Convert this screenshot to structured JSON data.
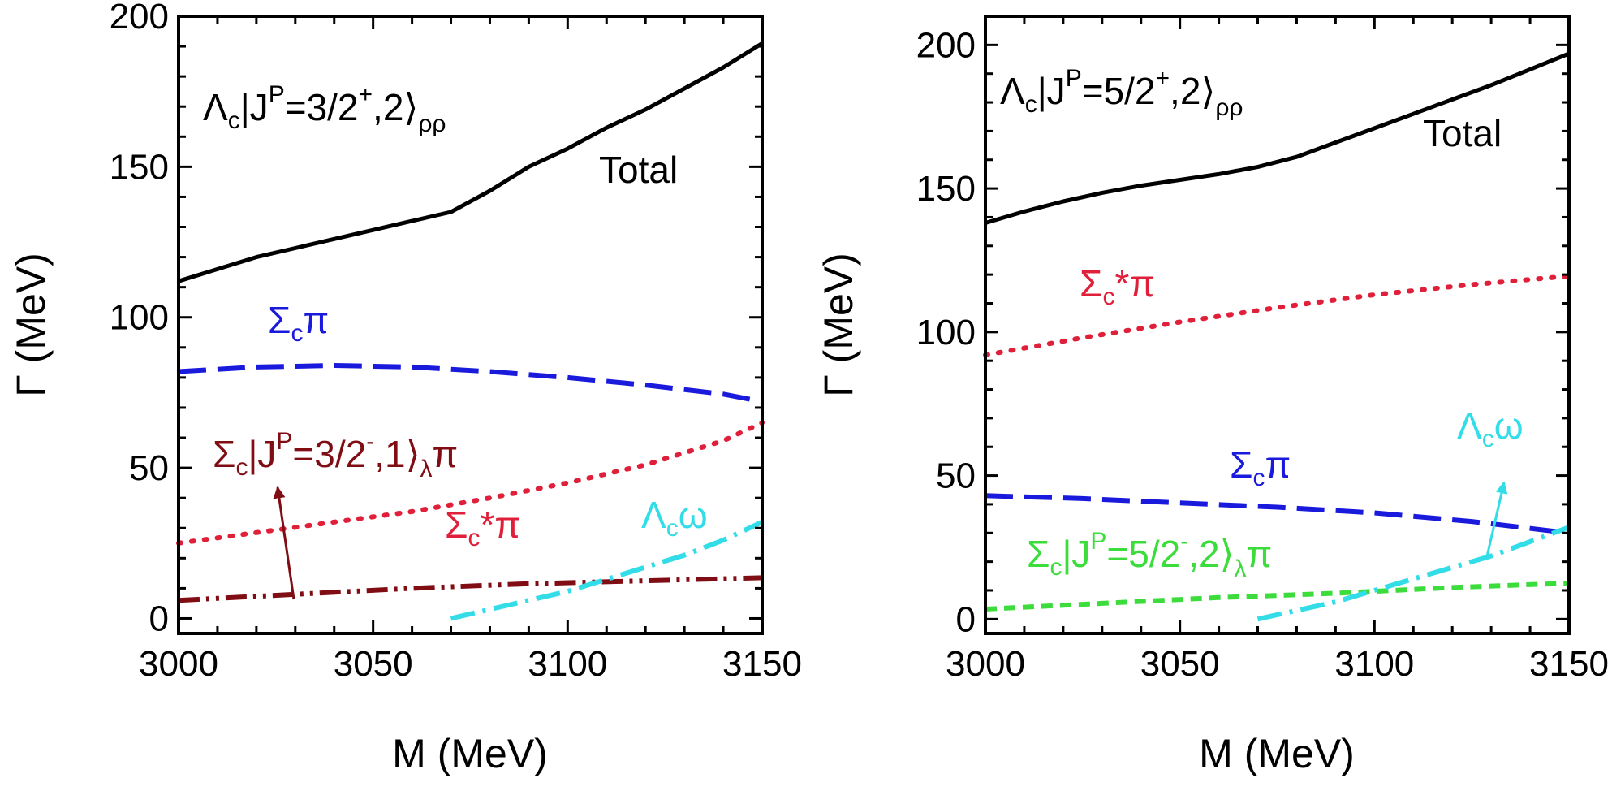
{
  "chart_data": [
    {
      "type": "line",
      "title": "",
      "xlabel": "M (MeV)",
      "ylabel": "Γ (MeV)",
      "xlim": [
        3000,
        3150
      ],
      "ylim": [
        -5,
        200
      ],
      "x_ticks": [
        3000,
        3050,
        3100,
        3150
      ],
      "y_ticks": [
        0,
        50,
        100,
        150,
        200
      ],
      "state_label": {
        "prefix": "Λ",
        "sub1": "c",
        "mid": "|J",
        "sup": "P",
        "body": "=3/2",
        "sup2": "+",
        "tail": ",2⟩",
        "sub2": "ρρ"
      },
      "series": [
        {
          "name": "Total",
          "color": "#000000",
          "style": "solid",
          "x": [
            3000,
            3010,
            3020,
            3030,
            3040,
            3050,
            3060,
            3070,
            3080,
            3090,
            3100,
            3110,
            3120,
            3130,
            3140,
            3150
          ],
          "y": [
            112,
            116,
            120,
            123,
            126,
            129,
            132,
            135,
            142,
            150,
            156,
            163,
            169,
            176,
            183,
            191
          ]
        },
        {
          "name": "Σcπ",
          "color": "#1a1adc",
          "style": "dash",
          "x": [
            3000,
            3020,
            3040,
            3060,
            3080,
            3100,
            3120,
            3140,
            3150
          ],
          "y": [
            82,
            83.5,
            84,
            83.5,
            82,
            80,
            77.5,
            74.5,
            72
          ]
        },
        {
          "name": "Σc*π",
          "color": "#e0203a",
          "style": "dot",
          "x": [
            3000,
            3020,
            3040,
            3060,
            3080,
            3100,
            3120,
            3140,
            3150
          ],
          "y": [
            25,
            28.5,
            32,
            35.5,
            40,
            45,
            51,
            59,
            65
          ]
        },
        {
          "name": "Σc|J^P=3/2^-,1⟩λπ",
          "color": "#800d14",
          "style": "dashdotdot",
          "x": [
            3000,
            3030,
            3060,
            3090,
            3120,
            3150
          ],
          "y": [
            6,
            8,
            10,
            11.5,
            12.5,
            13.5
          ]
        },
        {
          "name": "Λcω",
          "color": "#33dde8",
          "style": "dashdot",
          "x": [
            3070,
            3080,
            3090,
            3100,
            3110,
            3120,
            3130,
            3140,
            3150
          ],
          "y": [
            0,
            3,
            6,
            9,
            13,
            17,
            21,
            26,
            32
          ]
        }
      ],
      "annotations": {
        "total": "Total",
        "sigma_pi": {
          "base": "Σ",
          "sub": "c",
          "tail": "π"
        },
        "sigma_star_pi": {
          "base": "Σ",
          "sub": "c",
          "tail": "*π"
        },
        "sigma_state": {
          "base": "Σ",
          "sub": "c",
          "mid": "|J",
          "sup": "P",
          "body": "=3/2",
          "sup2": "-",
          "tail": ",1⟩",
          "sub2": "λ",
          "end": "π"
        },
        "lambda_omega": {
          "base": "Λ",
          "sub": "c",
          "tail": "ω"
        }
      }
    },
    {
      "type": "line",
      "title": "",
      "xlabel": "M (MeV)",
      "ylabel": "Γ (MeV)",
      "xlim": [
        3000,
        3150
      ],
      "ylim": [
        -5,
        210
      ],
      "x_ticks": [
        3000,
        3050,
        3100,
        3150
      ],
      "y_ticks": [
        0,
        50,
        100,
        150,
        200
      ],
      "state_label": {
        "prefix": "Λ",
        "sub1": "c",
        "mid": "|J",
        "sup": "P",
        "body": "=5/2",
        "sup2": "+",
        "tail": ",2⟩",
        "sub2": "ρρ"
      },
      "series": [
        {
          "name": "Total",
          "color": "#000000",
          "style": "solid",
          "x": [
            3000,
            3010,
            3020,
            3030,
            3040,
            3050,
            3060,
            3070,
            3080,
            3090,
            3100,
            3110,
            3120,
            3130,
            3140,
            3150
          ],
          "y": [
            138,
            142,
            145.5,
            148.5,
            151,
            153,
            155,
            157.5,
            161,
            166,
            171,
            176,
            181,
            186,
            191.5,
            197
          ]
        },
        {
          "name": "Σc*π",
          "color": "#e0203a",
          "style": "dot",
          "x": [
            3000,
            3025,
            3050,
            3075,
            3100,
            3125,
            3150
          ],
          "y": [
            92,
            98,
            103.5,
            108.5,
            113,
            116.5,
            119.5
          ]
        },
        {
          "name": "Σcπ",
          "color": "#1a1adc",
          "style": "dash",
          "x": [
            3000,
            3025,
            3050,
            3075,
            3100,
            3125,
            3150
          ],
          "y": [
            43,
            42,
            40.5,
            39,
            37,
            34,
            30
          ]
        },
        {
          "name": "Σc|J^P=5/2^-,2⟩λπ",
          "color": "#3ddc3d",
          "style": "shortdash",
          "x": [
            3000,
            3030,
            3060,
            3090,
            3120,
            3150
          ],
          "y": [
            3.5,
            5.5,
            7.5,
            9,
            11,
            12.5
          ]
        },
        {
          "name": "Λcω",
          "color": "#33dde8",
          "style": "dashdot",
          "x": [
            3070,
            3080,
            3090,
            3100,
            3110,
            3120,
            3130,
            3140,
            3150
          ],
          "y": [
            0,
            3,
            6,
            10,
            14,
            18,
            22,
            27,
            32
          ]
        }
      ],
      "annotations": {
        "total": "Total",
        "sigma_star_pi": {
          "base": "Σ",
          "sub": "c",
          "tail": "*π"
        },
        "sigma_pi": {
          "base": "Σ",
          "sub": "c",
          "tail": "π"
        },
        "sigma_state": {
          "base": "Σ",
          "sub": "c",
          "mid": "|J",
          "sup": "P",
          "body": "=5/2",
          "sup2": "-",
          "tail": ",2⟩",
          "sub2": "λ",
          "end": "π"
        },
        "lambda_omega": {
          "base": "Λ",
          "sub": "c",
          "tail": "ω"
        }
      }
    }
  ]
}
